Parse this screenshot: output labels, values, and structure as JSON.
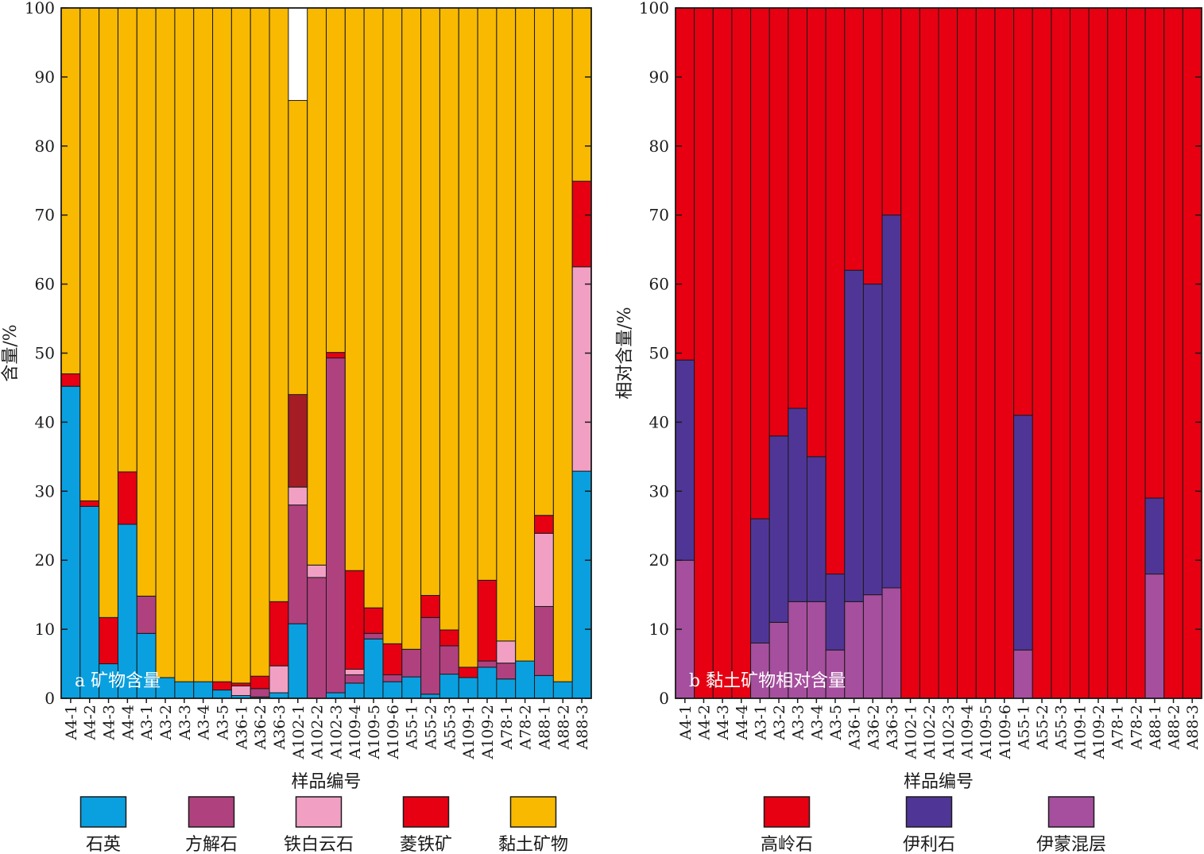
{
  "chart_data": [
    {
      "type": "bar",
      "stacked": true,
      "panel_label": "a 矿物含量",
      "xlabel": "样品编号",
      "ylabel": "含量/%",
      "ylim": [
        0,
        100
      ],
      "yticks": [
        0,
        10,
        20,
        30,
        40,
        50,
        60,
        70,
        80,
        90,
        100
      ],
      "grid": false,
      "legend_position": "bottom",
      "categories": [
        "A4-1",
        "A4-2",
        "A4-3",
        "A4-4",
        "A3-1",
        "A3-2",
        "A3-3",
        "A3-4",
        "A3-5",
        "A36-1",
        "A36-2",
        "A36-3",
        "A102-1",
        "A102-2",
        "A102-3",
        "A109-4",
        "A109-5",
        "A109-6",
        "A55-1",
        "A55-2",
        "A55-3",
        "A109-1",
        "A109-2",
        "A78-1",
        "A78-2",
        "A88-1",
        "A88-2",
        "A88-3"
      ],
      "series": [
        {
          "name": "石英",
          "color": "#0aa0e0",
          "values": [
            45.2,
            27.8,
            5.0,
            25.2,
            9.4,
            3.0,
            2.4,
            2.4,
            1.2,
            0.4,
            0.2,
            0.8,
            10.8,
            0.0,
            0.8,
            2.2,
            8.6,
            2.4,
            3.1,
            0.6,
            3.5,
            3.0,
            4.5,
            2.8,
            5.4,
            3.3,
            2.4,
            32.9
          ]
        },
        {
          "name": "方解石",
          "color": "#b0417f",
          "values": [
            0,
            0,
            0,
            0,
            5.4,
            0,
            0,
            0,
            0,
            0,
            1.2,
            0,
            17.2,
            17.5,
            48.5,
            1.2,
            0.8,
            1.0,
            4.0,
            11.1,
            4.1,
            0,
            0.9,
            2.3,
            0,
            10.0,
            0,
            0
          ]
        },
        {
          "name": "铁白云石",
          "color": "#f1a0c4",
          "values": [
            0,
            0,
            0,
            0,
            0,
            0,
            0,
            0,
            0,
            1.4,
            0,
            3.9,
            2.6,
            1.8,
            0,
            0.8,
            0,
            0,
            0,
            0,
            0,
            0,
            0,
            3.2,
            0,
            10.6,
            0,
            29.6
          ]
        },
        {
          "name": "菱铁矿",
          "color": "#e60012",
          "values": [
            1.8,
            0.8,
            6.7,
            7.6,
            0,
            0,
            0,
            0,
            1.2,
            0.4,
            1.8,
            9.3,
            4.0,
            0,
            0.8,
            14.3,
            3.7,
            4.5,
            0,
            3.2,
            2.3,
            1.5,
            11.7,
            0,
            0,
            2.6,
            0,
            12.4
          ]
        },
        {
          "name": "黏土矿物",
          "color": "#f8b900",
          "values": [
            53.0,
            71.4,
            88.3,
            67.2,
            85.2,
            97.0,
            97.6,
            97.6,
            97.6,
            97.8,
            96.8,
            86.0,
            52.0,
            80.7,
            49.9,
            81.5,
            86.9,
            92.1,
            92.9,
            85.1,
            90.1,
            95.5,
            82.9,
            91.7,
            94.6,
            73.5,
            97.6,
            25.1
          ]
        }
      ],
      "segment_annotations": [
        {
          "category": "A102-1",
          "from": 30.6,
          "to": 44.0,
          "color": "#a51c24"
        }
      ]
    },
    {
      "type": "bar",
      "stacked": true,
      "panel_label": "b 黏土矿物相对含量",
      "xlabel": "样品编号",
      "ylabel": "相对含量/%",
      "ylim": [
        0,
        100
      ],
      "yticks": [
        0,
        10,
        20,
        30,
        40,
        50,
        60,
        70,
        80,
        90,
        100
      ],
      "grid": false,
      "legend_position": "bottom",
      "categories": [
        "A4-1",
        "A4-2",
        "A4-3",
        "A4-4",
        "A3-1",
        "A3-2",
        "A3-3",
        "A3-4",
        "A3-5",
        "A36-1",
        "A36-2",
        "A36-3",
        "A102-1",
        "A102-2",
        "A102-3",
        "A109-4",
        "A109-5",
        "A109-6",
        "A55-1",
        "A55-2",
        "A55-3",
        "A109-1",
        "A109-2",
        "A78-1",
        "A78-2",
        "A88-1",
        "A88-2",
        "A88-3"
      ],
      "series": [
        {
          "name": "伊蒙混层",
          "color": "#a64f9e",
          "values": [
            20,
            0,
            0,
            0,
            8,
            11,
            14,
            14,
            7,
            14,
            15,
            16,
            0,
            0,
            0,
            0,
            0,
            0,
            7,
            0,
            0,
            0,
            0,
            0,
            0,
            18,
            0,
            0
          ]
        },
        {
          "name": "伊利石",
          "color": "#4f3696",
          "values": [
            29,
            0,
            0,
            0,
            18,
            27,
            28,
            21,
            11,
            48,
            45,
            54,
            0,
            0,
            0,
            0,
            0,
            0,
            34,
            0,
            0,
            0,
            0,
            0,
            0,
            11,
            0,
            0
          ]
        },
        {
          "name": "高岭石",
          "color": "#e60012",
          "values": [
            51,
            100,
            100,
            100,
            74,
            62,
            58,
            65,
            82,
            38,
            40,
            30,
            100,
            100,
            100,
            100,
            100,
            100,
            59,
            100,
            100,
            100,
            100,
            100,
            100,
            71,
            100,
            100
          ]
        }
      ],
      "legend_order": [
        "高岭石",
        "伊利石",
        "伊蒙混层"
      ]
    }
  ]
}
